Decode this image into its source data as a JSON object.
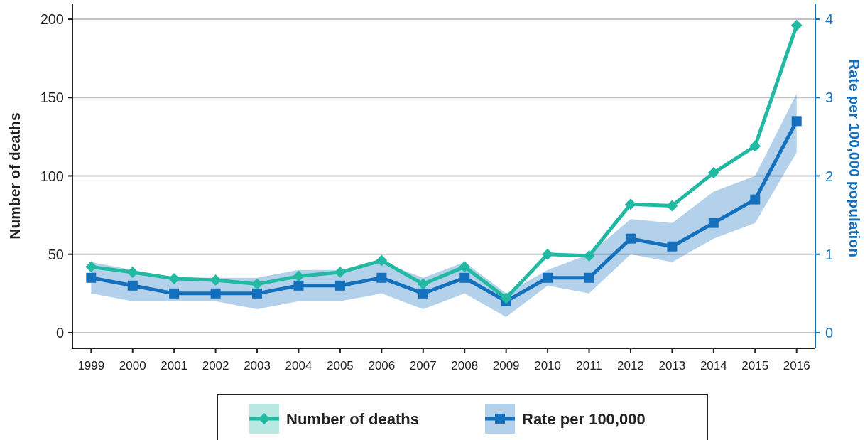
{
  "chart_data": {
    "type": "line",
    "categories": [
      "1999",
      "2000",
      "2001",
      "2002",
      "2003",
      "2004",
      "2005",
      "2006",
      "2007",
      "2008",
      "2009",
      "2010",
      "2011",
      "2012",
      "2013",
      "2014",
      "2015",
      "2016"
    ],
    "series": [
      {
        "name": "Number of deaths",
        "color": "#22b9a3",
        "marker": "diamond",
        "values": [
          42,
          38.5,
          34.5,
          33.5,
          31,
          36,
          38.5,
          46,
          31,
          42,
          22,
          50,
          49,
          82,
          81,
          102,
          119,
          196
        ]
      },
      {
        "name": "Rate per 100,000",
        "color": "#1470bd",
        "marker": "square",
        "axis": "y2",
        "values": [
          0.7,
          0.6,
          0.5,
          0.5,
          0.5,
          0.6,
          0.6,
          0.7,
          0.5,
          0.7,
          0.4,
          0.7,
          0.7,
          1.2,
          1.1,
          1.4,
          1.7,
          2.7
        ],
        "lower": [
          0.5,
          0.4,
          0.4,
          0.4,
          0.3,
          0.4,
          0.4,
          0.5,
          0.3,
          0.5,
          0.2,
          0.6,
          0.5,
          1.0,
          0.9,
          1.2,
          1.4,
          2.3
        ],
        "upper": [
          0.9,
          0.8,
          0.7,
          0.7,
          0.7,
          0.8,
          0.8,
          0.9,
          0.7,
          0.9,
          0.5,
          0.8,
          1.0,
          1.45,
          1.4,
          1.8,
          2.0,
          3.05
        ]
      }
    ],
    "ylabel": "Number of deaths",
    "y2label": "Rate per 100,000 population",
    "ylim": [
      -10,
      210
    ],
    "yticks": [
      0,
      50,
      100,
      150,
      200
    ],
    "y2lim": [
      -0.2,
      4.2
    ],
    "y2ticks": [
      0,
      1,
      2,
      3,
      4
    ],
    "grid": "y",
    "legend": "bottom"
  }
}
